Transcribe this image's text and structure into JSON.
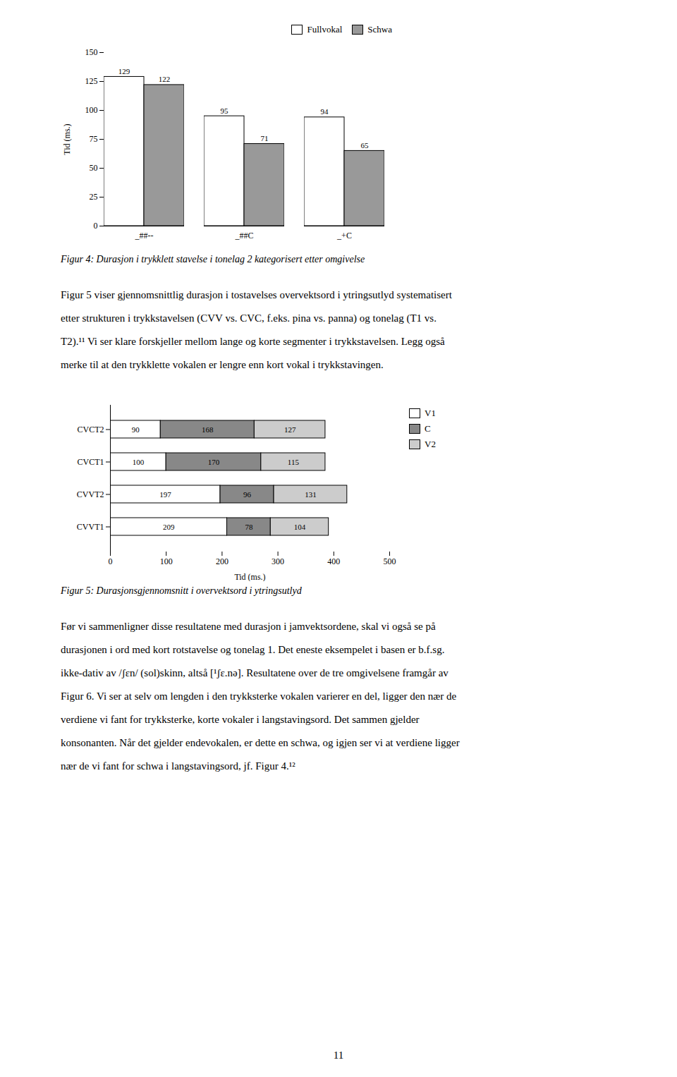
{
  "chart_data": [
    {
      "type": "bar",
      "title": "Figur 4: Durasjon i trykklett stavelse i tonelag 2 kategorisert etter omgivelse",
      "categories": [
        "_##--",
        "_##C",
        "_+C"
      ],
      "series": [
        {
          "name": "Fullvokal",
          "color": "#FFFFFF",
          "values": [
            129,
            95,
            94
          ]
        },
        {
          "name": "Schwa",
          "color": "#999999",
          "values": [
            122,
            71,
            65
          ]
        }
      ],
      "ylabel": "Tid (ms.)",
      "ylim": [
        0,
        150
      ],
      "yticks": [
        0,
        25,
        50,
        75,
        100,
        125,
        150
      ],
      "legend": "upper right",
      "data_labels": true,
      "grid": false,
      "annotations": [
        "Figur 5 viser gjennomsnittlig durasjon i tostavelses overvektsord i ytringsutlyd systematisert",
        "etter strukturen i trykkstavelsen (CVV vs. CVC, f.eks. pina vs. panna) og tonelag (T1 vs.",
        "T2).¹¹ Vi ser klare forskjeller mellom lange og korte segmenter i trykkstavelsen. Legg også",
        "merke til at den trykklette vokalen er lengre enn kort vokal i trykkstavingen."
      ]
    },
    {
      "type": "bar",
      "orientation": "horizontal",
      "stacked": true,
      "title": "Figur 5: Durasjonsgjennomsnitt i overvektsord i ytringsutlyd",
      "categories": [
        "CVVT1",
        "CVVT2",
        "CVCT1",
        "CVCT2"
      ],
      "series": [
        {
          "name": "V1",
          "color": "#FFFFFF",
          "values": [
            209,
            197,
            100,
            90
          ]
        },
        {
          "name": "C",
          "color": "#888888",
          "values": [
            78,
            96,
            170,
            168
          ]
        },
        {
          "name": "V2",
          "color": "#CCCCCC",
          "values": [
            104,
            131,
            115,
            127
          ]
        }
      ],
      "xlabel": "Tid (ms.)",
      "xlim": [
        0,
        500
      ],
      "xticks": [
        0,
        100,
        200,
        300,
        400,
        500
      ],
      "legend": "right",
      "data_labels": true,
      "grid": false,
      "annotations": [
        "Før vi sammenligner disse resultatene med durasjon i jamvektsordene, skal vi også se på",
        "durasjonen i ord med kort rotstavelse og tonelag 1. Det eneste eksempelet i basen er b.f.sg.",
        "ikke-dativ av /ʃɛn/ (sol)skinn, altså [¹ʃɛ.nə]. Resultatene over de tre omgivelsene framgår av",
        "Figur 6. Vi ser at selv om lengden i den trykksterke vokalen varierer en del, ligger den nær de",
        "verdiene vi fant for trykksterke, korte vokaler i langstavingsord. Det sammen gjelder",
        "konsonanten. Når det gjelder endevokalen, er dette en schwa, og igjen ser vi at verdiene ligger",
        "nær de vi fant for schwa i langstavingsord, jf. Figur 4.¹²",
        "11"
      ]
    }
  ]
}
